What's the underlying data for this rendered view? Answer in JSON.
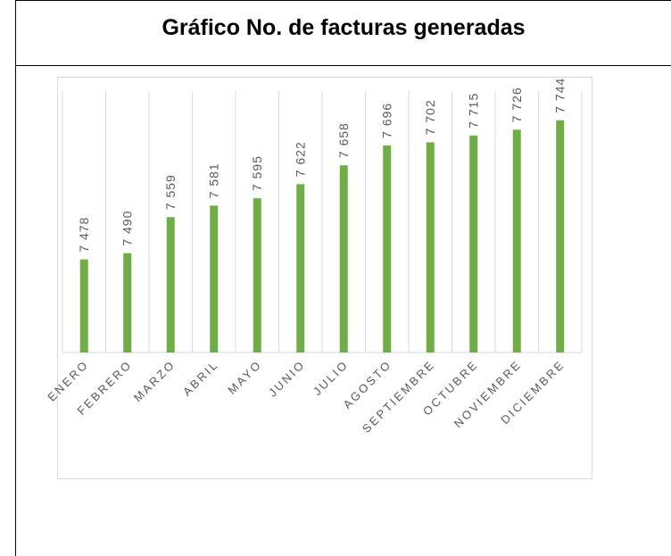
{
  "chart_data": {
    "type": "bar",
    "title": "Gráfico No. de facturas generadas",
    "categories": [
      "ENERO",
      "FEBRERO",
      "MARZO",
      "ABRIL",
      "MAYO",
      "JUNIO",
      "JULIO",
      "AGOSTO",
      "SEPTIEMBRE",
      "OCTUBRE",
      "NOVIEMBRE",
      "DICIEMBRE"
    ],
    "values": [
      7478,
      7490,
      7559,
      7581,
      7595,
      7622,
      7658,
      7696,
      7702,
      7715,
      7726,
      7744
    ],
    "value_labels": [
      "7 478",
      "7 490",
      "7 559",
      "7 581",
      "7 595",
      "7 622",
      "7 658",
      "7 696",
      "7 702",
      "7 715",
      "7 726",
      "7 744"
    ],
    "color": "#70ad47",
    "ylim": [
      7300,
      7800
    ],
    "grid": true
  }
}
